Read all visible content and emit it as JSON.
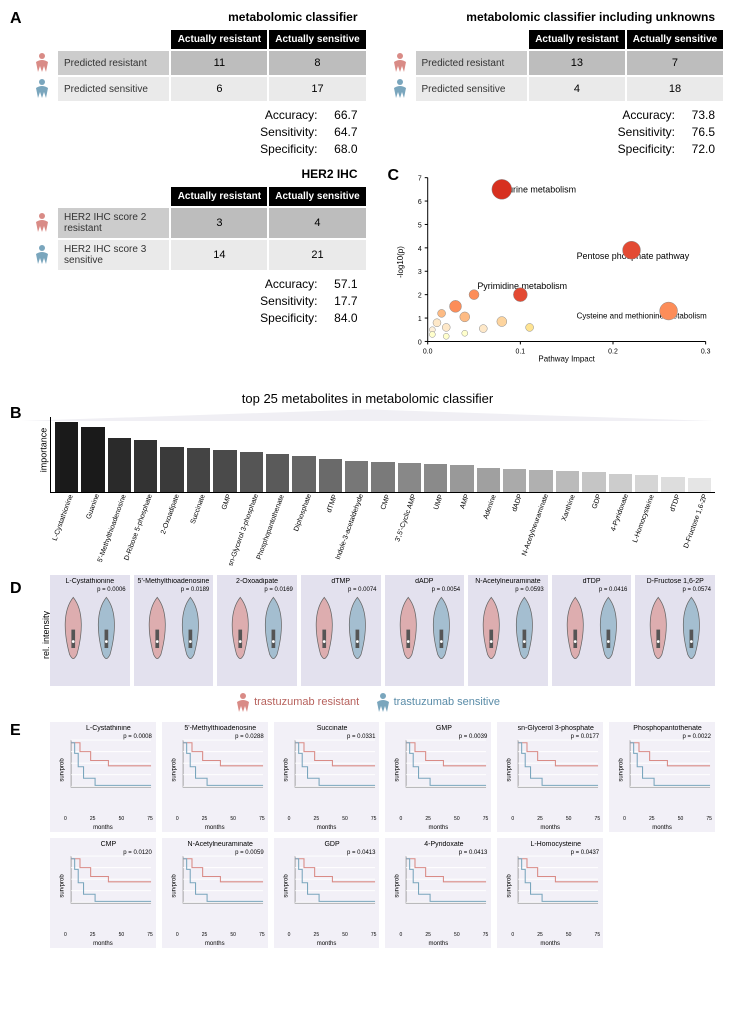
{
  "panelA": {
    "label": "A",
    "cm1": {
      "title": "metabolomic classifier",
      "col1": "Actually resistant",
      "col2": "Actually sensitive",
      "row1": "Predicted resistant",
      "row2": "Predicted sensitive",
      "v11": "11",
      "v12": "8",
      "v21": "6",
      "v22": "17",
      "acc_label": "Accuracy:",
      "acc": "66.7",
      "sen_label": "Sensitivity:",
      "sen": "64.7",
      "spe_label": "Specificity:",
      "spe": "68.0"
    },
    "cm2": {
      "title": "metabolomic classifier including unknowns",
      "col1": "Actually resistant",
      "col2": "Actually sensitive",
      "row1": "Predicted resistant",
      "row2": "Predicted sensitive",
      "v11": "13",
      "v12": "7",
      "v21": "4",
      "v22": "18",
      "acc_label": "Accuracy:",
      "acc": "73.8",
      "sen_label": "Sensitivity:",
      "sen": "76.5",
      "spe_label": "Specificity:",
      "spe": "72.0"
    },
    "cm3": {
      "title": "HER2 IHC",
      "col1": "Actually resistant",
      "col2": "Actually sensitive",
      "row1header": "HER2 IHC score",
      "row1sub": "resistant",
      "row1num": "2",
      "row2header": "HER2 IHC score",
      "row2sub": "sensitive",
      "row2num": "3",
      "v11": "3",
      "v12": "4",
      "v21": "14",
      "v22": "21",
      "acc_label": "Accuracy:",
      "acc": "57.1",
      "sen_label": "Sensitivity:",
      "sen": "17.7",
      "spe_label": "Specificity:",
      "spe": "84.0"
    }
  },
  "panelC": {
    "label": "C",
    "xlabel": "Pathway Impact",
    "ylabel": "-log10(p)",
    "xticks": [
      "0.0",
      "0.1",
      "0.2",
      "0.3"
    ],
    "yticks": [
      "0",
      "1",
      "2",
      "3",
      "4",
      "5",
      "6",
      "7"
    ],
    "annotations": {
      "a1": "Purine metabolism",
      "a2": "Pentose phosphate pathway",
      "a3": "Pyrimidine metabolism",
      "a4": "Cysteine and methionine metabolism"
    },
    "points": [
      {
        "x": 0.08,
        "y": 6.5,
        "r": 10,
        "c": "#d7301f"
      },
      {
        "x": 0.22,
        "y": 3.9,
        "r": 9,
        "c": "#e34a33"
      },
      {
        "x": 0.1,
        "y": 2.0,
        "r": 7,
        "c": "#e34a33"
      },
      {
        "x": 0.26,
        "y": 1.3,
        "r": 9,
        "c": "#fc8d59"
      },
      {
        "x": 0.05,
        "y": 2.0,
        "r": 5,
        "c": "#fc8d59"
      },
      {
        "x": 0.03,
        "y": 1.5,
        "r": 6,
        "c": "#fc8d59"
      },
      {
        "x": 0.015,
        "y": 1.2,
        "r": 4,
        "c": "#fdbb84"
      },
      {
        "x": 0.04,
        "y": 1.05,
        "r": 5,
        "c": "#fdbb84"
      },
      {
        "x": 0.08,
        "y": 0.85,
        "r": 5,
        "c": "#fdd49e"
      },
      {
        "x": 0.01,
        "y": 0.8,
        "r": 4,
        "c": "#fee8c8"
      },
      {
        "x": 0.02,
        "y": 0.6,
        "r": 4,
        "c": "#fee8c8"
      },
      {
        "x": 0.005,
        "y": 0.5,
        "r": 3,
        "c": "#fef0d9"
      },
      {
        "x": 0.06,
        "y": 0.55,
        "r": 4,
        "c": "#fee8c8"
      },
      {
        "x": 0.11,
        "y": 0.6,
        "r": 4,
        "c": "#fee391"
      },
      {
        "x": 0.005,
        "y": 0.3,
        "r": 3,
        "c": "#ffffcc"
      },
      {
        "x": 0.04,
        "y": 0.35,
        "r": 3,
        "c": "#ffffcc"
      },
      {
        "x": 0.02,
        "y": 0.22,
        "r": 3,
        "c": "#ffffcc"
      }
    ]
  },
  "panelB": {
    "label": "B",
    "title": "top 25 metabolites in metabolomic classifier",
    "ylabel": "importance",
    "yticks": [
      "0.000",
      "0.025",
      "0.050"
    ],
    "bars": [
      {
        "name": "L-Cystathionine",
        "h": 0.062,
        "c": "#1a1a1a"
      },
      {
        "name": "Guanine",
        "h": 0.058,
        "c": "#1a1a1a"
      },
      {
        "name": "5'-Methylthioadenosine",
        "h": 0.048,
        "c": "#2a2a2a"
      },
      {
        "name": "D-Ribose 5-phosphate",
        "h": 0.046,
        "c": "#333"
      },
      {
        "name": "2-Oxoadipate",
        "h": 0.04,
        "c": "#3a3a3a"
      },
      {
        "name": "Succinate",
        "h": 0.039,
        "c": "#444"
      },
      {
        "name": "GMP",
        "h": 0.038,
        "c": "#4a4a4a"
      },
      {
        "name": "sn-Glycerol 3-phosphate",
        "h": 0.036,
        "c": "#555"
      },
      {
        "name": "Phosphopantothenate",
        "h": 0.034,
        "c": "#5a5a5a"
      },
      {
        "name": "Diphosphate",
        "h": 0.032,
        "c": "#666"
      },
      {
        "name": "dTMP",
        "h": 0.03,
        "c": "#6a6a6a"
      },
      {
        "name": "Indole-3-acetaldehyde",
        "h": 0.028,
        "c": "#777"
      },
      {
        "name": "CMP",
        "h": 0.027,
        "c": "#7a7a7a"
      },
      {
        "name": "3',5'-Cyclic AMP",
        "h": 0.026,
        "c": "#888"
      },
      {
        "name": "UMP",
        "h": 0.025,
        "c": "#8a8a8a"
      },
      {
        "name": "AMP",
        "h": 0.024,
        "c": "#999"
      },
      {
        "name": "Adenine",
        "h": 0.022,
        "c": "#a0a0a0"
      },
      {
        "name": "dADP",
        "h": 0.021,
        "c": "#aaa"
      },
      {
        "name": "N-Acetylneuraminate",
        "h": 0.02,
        "c": "#b0b0b0"
      },
      {
        "name": "Xanthine",
        "h": 0.019,
        "c": "#bbb"
      },
      {
        "name": "GDP",
        "h": 0.018,
        "c": "#c5c5c5"
      },
      {
        "name": "4-Pyridoxate",
        "h": 0.016,
        "c": "#ccc"
      },
      {
        "name": "L-Homocysteine",
        "h": 0.015,
        "c": "#d5d5d5"
      },
      {
        "name": "dTDP",
        "h": 0.014,
        "c": "#ddd"
      },
      {
        "name": "D-Fructose 1,6-2P",
        "h": 0.013,
        "c": "#e5e5e5"
      }
    ]
  },
  "panelD": {
    "label": "D",
    "ylabel": "rel. intensity",
    "legend_r": "trastuzumab resistant",
    "legend_s": "trastuzumab sensitive",
    "violins": [
      {
        "name": "L-Cystathionine",
        "p": "p = 0.0006"
      },
      {
        "name": "5'-Methylthioadenosine",
        "p": "p = 0.0189"
      },
      {
        "name": "2-Oxoadipate",
        "p": "p = 0.0169"
      },
      {
        "name": "dTMP",
        "p": "p = 0.0074"
      },
      {
        "name": "dADP",
        "p": "p = 0.0054"
      },
      {
        "name": "N-Acetylneuraminate",
        "p": "p = 0.0593"
      },
      {
        "name": "dTDP",
        "p": "p = 0.0416"
      },
      {
        "name": "D-Fructose 1,6-2P",
        "p": "p = 0.0574"
      }
    ]
  },
  "panelE": {
    "label": "E",
    "xlabel": "months",
    "ylabel": "survprob",
    "xticks": [
      "0",
      "25",
      "50",
      "75"
    ],
    "km": [
      {
        "name": "L-Cystathinine",
        "p": "p = 0.0008"
      },
      {
        "name": "5'-Methylthioadenosine",
        "p": "p = 0.0288"
      },
      {
        "name": "Succinate",
        "p": "p = 0.0331"
      },
      {
        "name": "GMP",
        "p": "p = 0.0039"
      },
      {
        "name": "sn-Glycerol 3-phosphate",
        "p": "p = 0.0177"
      },
      {
        "name": "Phosphopantothenate",
        "p": "p = 0.0022"
      },
      {
        "name": "CMP",
        "p": "p = 0.0120"
      },
      {
        "name": "N-Acetylneuraminate",
        "p": "p = 0.0059"
      },
      {
        "name": "GDP",
        "p": "p = 0.0413"
      },
      {
        "name": "4-Pyridoxate",
        "p": "p = 0.0413"
      },
      {
        "name": "L-Homocysteine",
        "p": "p = 0.0437"
      }
    ]
  },
  "colors": {
    "resistant": "#d98b86",
    "sensitive": "#7aa6bd",
    "violin_bg": "#e3e1ee",
    "km_bg": "#f2f0f7"
  }
}
